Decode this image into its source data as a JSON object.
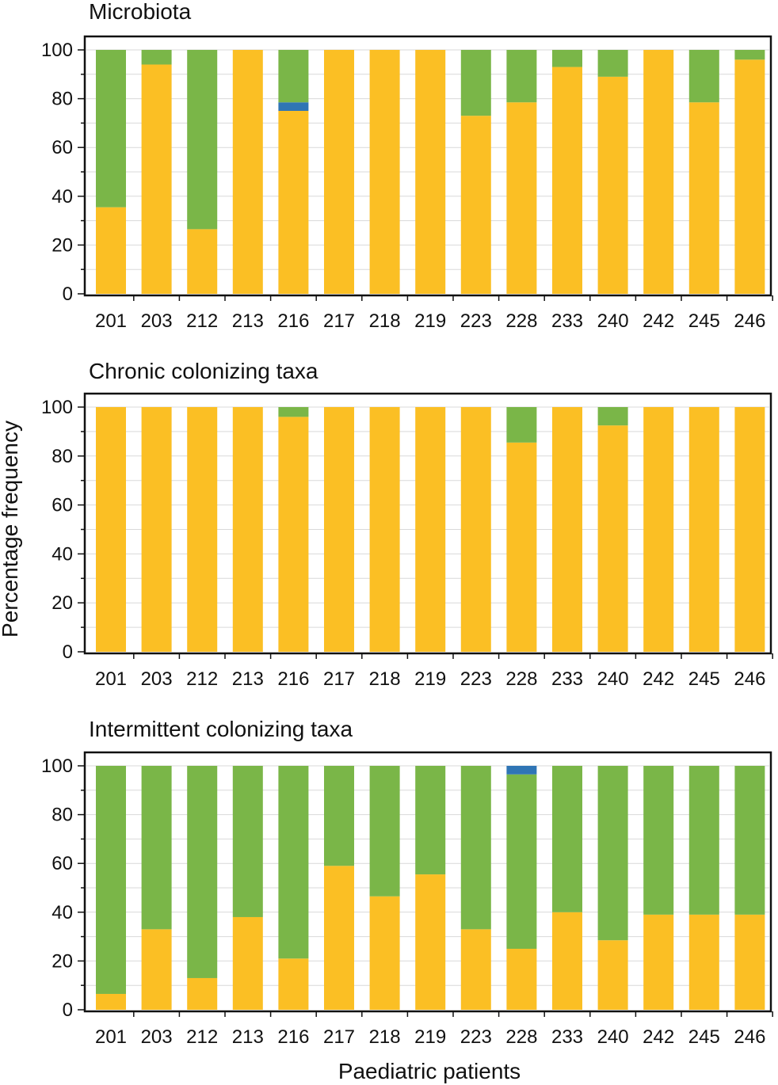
{
  "figure": {
    "ylabel": "Percentage frequency",
    "xlabel": "Paediatric patients"
  },
  "colors": {
    "yellow": "#FBBF24",
    "green": "#7AB648",
    "blue": "#2F75B5",
    "axis": "#111111",
    "grid": "#d9d9d9"
  },
  "chart_data": [
    {
      "type": "bar",
      "stacked": true,
      "title": "Microbiota",
      "xlabel": "Paediatric patients",
      "ylabel": "Percentage frequency",
      "ylim": [
        0,
        100
      ],
      "yticks": [
        0,
        20,
        40,
        60,
        80,
        100
      ],
      "categories": [
        "201",
        "203",
        "212",
        "213",
        "216",
        "217",
        "218",
        "219",
        "223",
        "228",
        "233",
        "240",
        "242",
        "245",
        "246"
      ],
      "series": [
        {
          "name": "yellow",
          "color": "#FBBF24",
          "values": [
            35.5,
            94,
            26.5,
            100,
            75,
            100,
            100,
            100,
            73,
            78.5,
            93,
            89,
            100,
            78.5,
            96
          ]
        },
        {
          "name": "blue",
          "color": "#2F75B5",
          "values": [
            0,
            0,
            0,
            0,
            3.5,
            0,
            0,
            0,
            0,
            0,
            0,
            0,
            0,
            0,
            0
          ]
        },
        {
          "name": "green",
          "color": "#7AB648",
          "values": [
            64.5,
            6,
            73.5,
            0,
            21.5,
            0,
            0,
            0,
            27,
            21.5,
            7,
            11,
            0,
            21.5,
            4
          ]
        }
      ]
    },
    {
      "type": "bar",
      "stacked": true,
      "title": "Chronic colonizing taxa",
      "xlabel": "Paediatric patients",
      "ylabel": "Percentage frequency",
      "ylim": [
        0,
        100
      ],
      "yticks": [
        0,
        20,
        40,
        60,
        80,
        100
      ],
      "categories": [
        "201",
        "203",
        "212",
        "213",
        "216",
        "217",
        "218",
        "219",
        "223",
        "228",
        "233",
        "240",
        "242",
        "245",
        "246"
      ],
      "series": [
        {
          "name": "yellow",
          "color": "#FBBF24",
          "values": [
            100,
            100,
            100,
            100,
            96,
            100,
            100,
            100,
            100,
            85.5,
            100,
            92.5,
            100,
            100,
            100
          ]
        },
        {
          "name": "blue",
          "color": "#2F75B5",
          "values": [
            0,
            0,
            0,
            0,
            0,
            0,
            0,
            0,
            0,
            0,
            0,
            0,
            0,
            0,
            0
          ]
        },
        {
          "name": "green",
          "color": "#7AB648",
          "values": [
            0,
            0,
            0,
            0,
            4,
            0,
            0,
            0,
            0,
            14.5,
            0,
            7.5,
            0,
            0,
            0
          ]
        }
      ]
    },
    {
      "type": "bar",
      "stacked": true,
      "title": "Intermittent colonizing taxa",
      "xlabel": "Paediatric patients",
      "ylabel": "Percentage frequency",
      "ylim": [
        0,
        100
      ],
      "yticks": [
        0,
        20,
        40,
        60,
        80,
        100
      ],
      "categories": [
        "201",
        "203",
        "212",
        "213",
        "216",
        "217",
        "218",
        "219",
        "223",
        "228",
        "233",
        "240",
        "242",
        "245",
        "246"
      ],
      "series": [
        {
          "name": "yellow",
          "color": "#FBBF24",
          "values": [
            6.5,
            33,
            13,
            38,
            21,
            59,
            46.5,
            55.5,
            33,
            25,
            40,
            28.5,
            39,
            39,
            39
          ]
        },
        {
          "name": "green",
          "color": "#7AB648",
          "values": [
            93.5,
            67,
            87,
            62,
            79,
            41,
            53.5,
            44.5,
            67,
            71.5,
            60,
            71.5,
            61,
            61,
            61
          ]
        },
        {
          "name": "blue",
          "color": "#2F75B5",
          "values": [
            0,
            0,
            0,
            0,
            0,
            0,
            0,
            0,
            0,
            3.5,
            0,
            0,
            0,
            0,
            0
          ]
        }
      ]
    }
  ]
}
